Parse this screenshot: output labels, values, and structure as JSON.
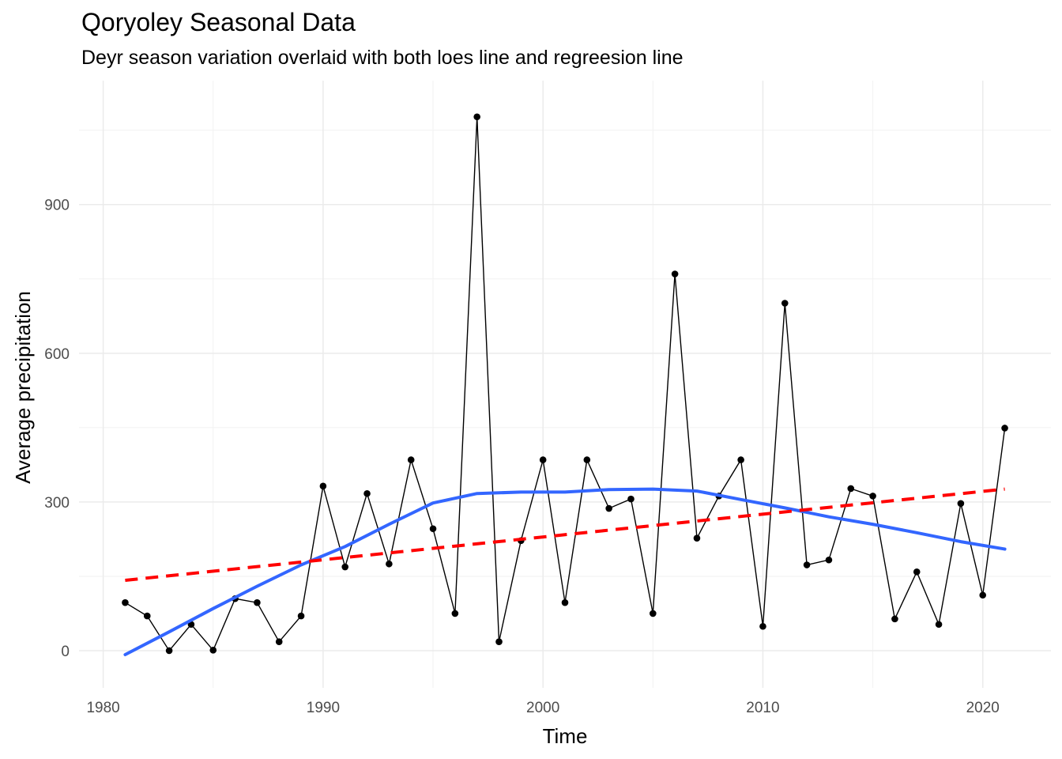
{
  "chart_data": {
    "type": "line",
    "title": "Qoryoley Seasonal Data",
    "subtitle": "Deyr season variation overlaid with both loes line and regreesion line",
    "xlabel": "Time",
    "ylabel": "Average precipitation",
    "xlim": [
      1978.9,
      2023.1
    ],
    "ylim": [
      -75,
      1150
    ],
    "x_ticks": [
      1980,
      1990,
      2000,
      2010,
      2020
    ],
    "y_ticks": [
      0,
      300,
      600,
      900
    ],
    "grid": true,
    "series": [
      {
        "kind": "observed",
        "color": "#000000",
        "x": [
          1981,
          1982,
          1983,
          1984,
          1985,
          1986,
          1987,
          1988,
          1989,
          1990,
          1991,
          1992,
          1993,
          1994,
          1995,
          1996,
          1997,
          1998,
          1999,
          2000,
          2001,
          2002,
          2003,
          2004,
          2005,
          2006,
          2007,
          2008,
          2009,
          2010,
          2011,
          2012,
          2013,
          2014,
          2015,
          2016,
          2017,
          2018,
          2019,
          2020,
          2021
        ],
        "y": [
          97,
          70,
          0,
          53,
          1,
          105,
          97,
          18,
          70,
          332,
          169,
          317,
          175,
          385,
          246,
          75,
          1077,
          18,
          222,
          385,
          97,
          385,
          287,
          306,
          75,
          760,
          227,
          312,
          385,
          49,
          701,
          173,
          183,
          327,
          312,
          64,
          159,
          53,
          297,
          112,
          449
        ]
      },
      {
        "kind": "loess",
        "color": "#3366ff",
        "x": [
          1981,
          1983,
          1985,
          1987,
          1989,
          1991,
          1993,
          1995,
          1997,
          1999,
          2001,
          2003,
          2005,
          2007,
          2009,
          2011,
          2013,
          2015,
          2017,
          2019,
          2021
        ],
        "y": [
          -8,
          38,
          85,
          130,
          173,
          210,
          255,
          298,
          317,
          320,
          320,
          325,
          326,
          322,
          305,
          288,
          270,
          255,
          238,
          220,
          205
        ]
      },
      {
        "kind": "regression",
        "color": "#ff0000",
        "x": [
          1981,
          2021
        ],
        "y": [
          142,
          326
        ]
      }
    ]
  }
}
